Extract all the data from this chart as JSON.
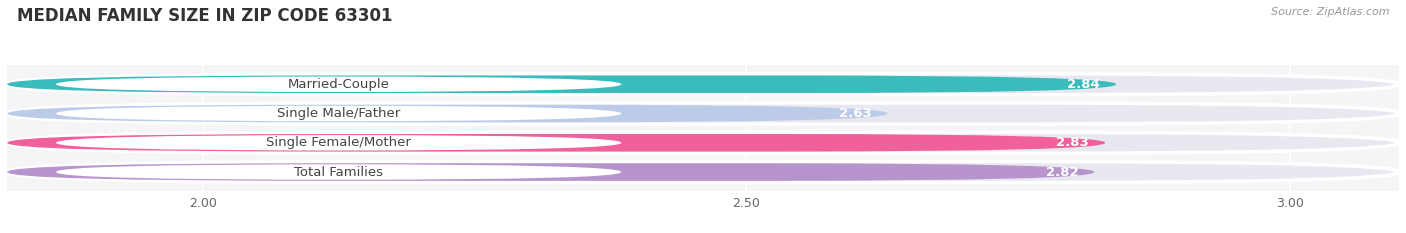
{
  "title": "MEDIAN FAMILY SIZE IN ZIP CODE 63301",
  "source_text": "Source: ZipAtlas.com",
  "categories": [
    "Married-Couple",
    "Single Male/Father",
    "Single Female/Mother",
    "Total Families"
  ],
  "values": [
    2.84,
    2.63,
    2.83,
    2.82
  ],
  "bar_colors": [
    "#3bbcbc",
    "#bccce8",
    "#f0609a",
    "#b894cc"
  ],
  "bar_bg_color": "#e8e8f0",
  "label_bg_color": "#ffffff",
  "xlim_min": 1.82,
  "xlim_max": 3.1,
  "xticks": [
    2.0,
    2.5,
    3.0
  ],
  "xtick_labels": [
    "2.00",
    "2.50",
    "3.00"
  ],
  "label_fontsize": 9.5,
  "value_fontsize": 9.5,
  "title_fontsize": 12,
  "fig_bg_color": "#ffffff",
  "ax_bg_color": "#f5f5f8"
}
